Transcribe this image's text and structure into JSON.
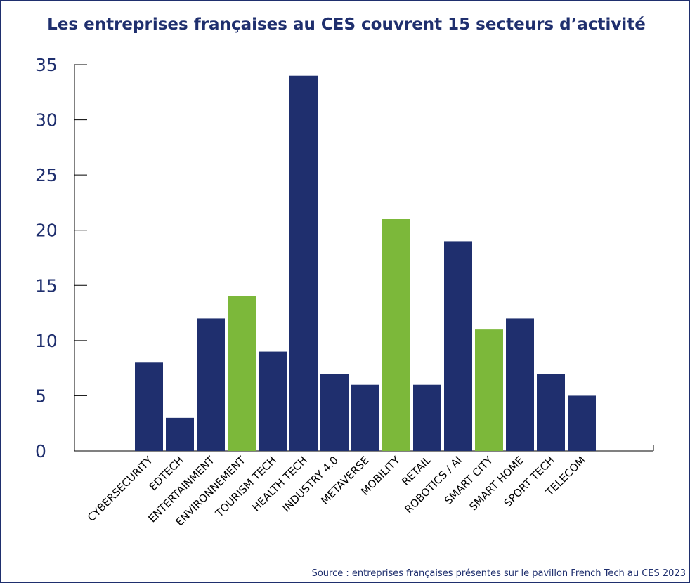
{
  "chart_data": {
    "type": "bar",
    "title": "Les entreprises françaises au CES couvrent 15 secteurs d’activité",
    "categories": [
      "CYBERSECURITY",
      "EDTECH",
      "ENTERTAINMENT",
      "ENVIRONNEMENT",
      "TOURISM TECH",
      "HEALTH TECH",
      "INDUSTRY 4.0",
      "METAVERSE",
      "MOBILITY",
      "RETAIL",
      "ROBOTICS / AI",
      "SMART CITY",
      "SMART HOME",
      "SPORT TECH",
      "TELECOM"
    ],
    "values": [
      8,
      3,
      12,
      14,
      9,
      34,
      7,
      6,
      21,
      6,
      19,
      11,
      12,
      7,
      5
    ],
    "highlighted": [
      "ENVIRONNEMENT",
      "MOBILITY",
      "SMART CITY"
    ],
    "ylim": [
      0,
      35
    ],
    "yticks": [
      0,
      5,
      10,
      15,
      20,
      25,
      30,
      35
    ],
    "xlabel": "",
    "ylabel": "",
    "grid": false,
    "colors": {
      "bar": "#1f2f6e",
      "highlight": "#7cb83a",
      "text": "#1f2f6e",
      "axis": "#000000"
    },
    "source": "Source : entreprises françaises présentes sur le pavillon French Tech au CES 2023"
  }
}
